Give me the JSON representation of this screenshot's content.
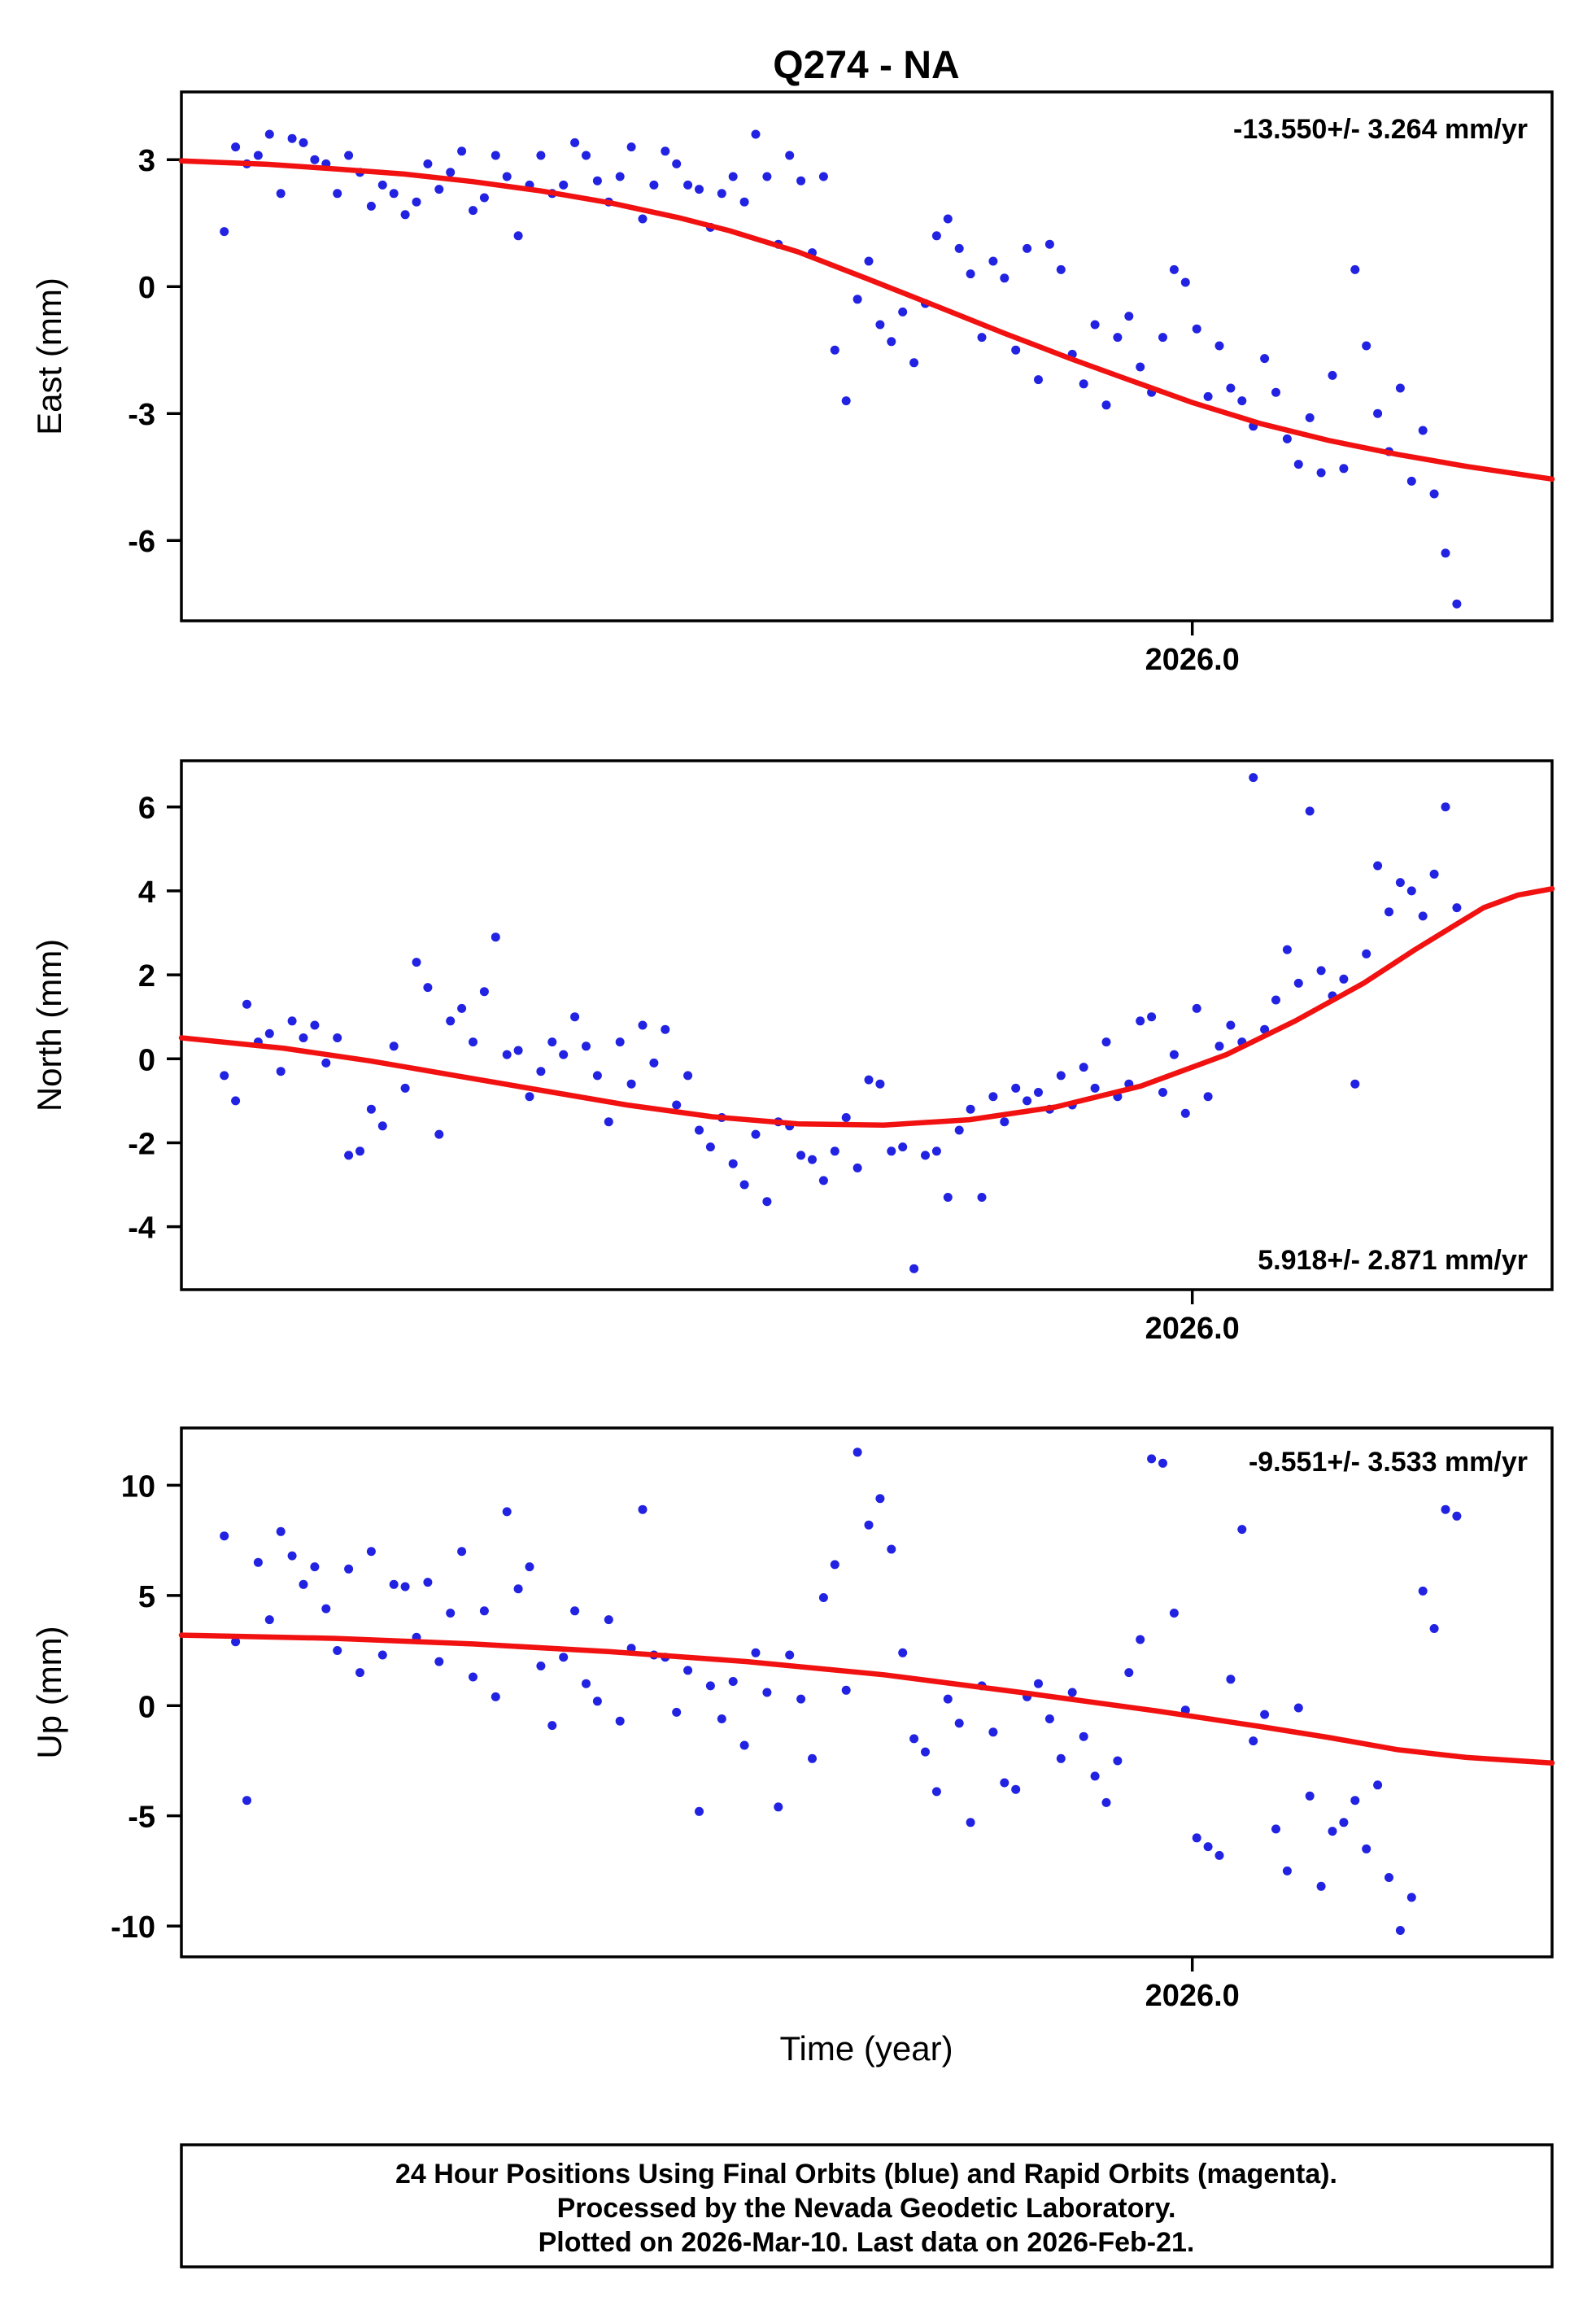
{
  "title": "Q274 - NA",
  "xlabel": "Time (year)",
  "footer": {
    "line1": "24 Hour Positions Using Final Orbits (blue) and Rapid Orbits (magenta).",
    "line2": "Processed by the Nevada Geodetic Laboratory.",
    "line3": "Plotted on 2026-Mar-10. Last data on 2026-Feb-21."
  },
  "colors": {
    "dot": "#2222e2",
    "trend": "#f11111",
    "frame": "#000000"
  },
  "chart_data": [
    {
      "type": "scatter",
      "name": "east",
      "ylabel": "East (mm)",
      "annotation": "-13.550+/- 3.264 mm/yr",
      "annotation_pos": "top-right",
      "xlim": [
        2025.41,
        2026.21
      ],
      "ylim": [
        -7.9,
        4.6
      ],
      "yticks": [
        3,
        0,
        -3,
        -6
      ],
      "xtick": {
        "value": 2026.0,
        "label": "2026.0"
      },
      "points": {
        "t0": 2025.435,
        "dt": 0.0066,
        "y": [
          1.3,
          3.3,
          2.9,
          3.1,
          3.6,
          2.2,
          3.5,
          3.4,
          3.0,
          2.9,
          2.2,
          3.1,
          2.7,
          1.9,
          2.4,
          2.2,
          1.7,
          2.0,
          2.9,
          2.3,
          2.7,
          3.2,
          1.8,
          2.1,
          3.1,
          2.6,
          1.2,
          2.4,
          3.1,
          2.2,
          2.4,
          3.4,
          3.1,
          2.5,
          2.0,
          2.6,
          3.3,
          1.6,
          2.4,
          3.2,
          2.9,
          2.4,
          2.3,
          1.4,
          2.2,
          2.6,
          2.0,
          3.6,
          2.6,
          1.0,
          3.1,
          2.5,
          0.8,
          2.6,
          -1.5,
          -2.7,
          -0.3,
          0.6,
          -0.9,
          -1.3,
          -0.6,
          -1.8,
          -0.4,
          1.2,
          1.6,
          0.9,
          0.3,
          -1.2,
          0.6,
          0.2,
          -1.5,
          0.9,
          -2.2,
          1.0,
          0.4,
          -1.6,
          -2.3,
          -0.9,
          -2.8,
          -1.2,
          -0.7,
          -1.9,
          -2.5,
          -1.2,
          0.4,
          0.1,
          -1.0,
          -2.6,
          -1.4,
          -2.4,
          -2.7,
          -3.3,
          -1.7,
          -2.5,
          -3.6,
          -4.2,
          -3.1,
          -4.4,
          -2.1,
          -4.3,
          0.4,
          -1.4,
          -3.0,
          -3.9,
          -2.4,
          -4.6,
          -3.4,
          -4.9,
          -6.3,
          -7.5
        ]
      },
      "trend": [
        [
          2025.41,
          2.97
        ],
        [
          2025.46,
          2.89
        ],
        [
          2025.5,
          2.78
        ],
        [
          2025.54,
          2.66
        ],
        [
          2025.58,
          2.48
        ],
        [
          2025.62,
          2.26
        ],
        [
          2025.66,
          1.98
        ],
        [
          2025.7,
          1.63
        ],
        [
          2025.73,
          1.32
        ],
        [
          2025.77,
          0.82
        ],
        [
          2025.81,
          0.19
        ],
        [
          2025.85,
          -0.45
        ],
        [
          2025.89,
          -1.1
        ],
        [
          2025.93,
          -1.72
        ],
        [
          2025.96,
          -2.16
        ],
        [
          2026.0,
          -2.74
        ],
        [
          2026.04,
          -3.24
        ],
        [
          2026.08,
          -3.64
        ],
        [
          2026.12,
          -3.97
        ],
        [
          2026.16,
          -4.25
        ],
        [
          2026.21,
          -4.55
        ]
      ]
    },
    {
      "type": "scatter",
      "name": "north",
      "ylabel": "North (mm)",
      "annotation": "5.918+/- 2.871 mm/yr",
      "annotation_pos": "bottom-right",
      "xlim": [
        2025.41,
        2026.21
      ],
      "ylim": [
        -5.5,
        7.1
      ],
      "yticks": [
        6,
        4,
        2,
        0,
        -2,
        -4
      ],
      "xtick": {
        "value": 2026.0,
        "label": "2026.0"
      },
      "points": {
        "t0": 2025.435,
        "dt": 0.0066,
        "y": [
          -0.4,
          -1.0,
          1.3,
          0.4,
          0.6,
          -0.3,
          0.9,
          0.5,
          0.8,
          -0.1,
          0.5,
          -2.3,
          -2.2,
          -1.2,
          -1.6,
          0.3,
          -0.7,
          2.3,
          1.7,
          -1.8,
          0.9,
          1.2,
          0.4,
          1.6,
          2.9,
          0.1,
          0.2,
          -0.9,
          -0.3,
          0.4,
          0.1,
          1.0,
          0.3,
          -0.4,
          -1.5,
          0.4,
          -0.6,
          0.8,
          -0.1,
          0.7,
          -1.1,
          -0.4,
          -1.7,
          -2.1,
          -1.4,
          -2.5,
          -3.0,
          -1.8,
          -3.4,
          -1.5,
          -1.6,
          -2.3,
          -2.4,
          -2.9,
          -2.2,
          -1.4,
          -2.6,
          -0.5,
          -0.6,
          -2.2,
          -2.1,
          -5.0,
          -2.3,
          -2.2,
          -3.3,
          -1.7,
          -1.2,
          -3.3,
          -0.9,
          -1.5,
          -0.7,
          -1.0,
          -0.8,
          -1.2,
          -0.4,
          -1.1,
          -0.2,
          -0.7,
          0.4,
          -0.9,
          -0.6,
          0.9,
          1.0,
          -0.8,
          0.1,
          -1.3,
          1.2,
          -0.9,
          0.3,
          0.8,
          0.4,
          6.7,
          0.7,
          1.4,
          2.6,
          1.8,
          5.9,
          2.1,
          1.5,
          1.9,
          -0.6,
          2.5,
          4.6,
          3.5,
          4.2,
          4.0,
          3.4,
          4.4,
          6.0,
          3.6
        ]
      },
      "trend": [
        [
          2025.41,
          0.5
        ],
        [
          2025.47,
          0.25
        ],
        [
          2025.52,
          -0.05
        ],
        [
          2025.57,
          -0.4
        ],
        [
          2025.62,
          -0.75
        ],
        [
          2025.67,
          -1.1
        ],
        [
          2025.72,
          -1.38
        ],
        [
          2025.77,
          -1.55
        ],
        [
          2025.82,
          -1.58
        ],
        [
          2025.87,
          -1.45
        ],
        [
          2025.92,
          -1.15
        ],
        [
          2025.97,
          -0.65
        ],
        [
          2026.02,
          0.1
        ],
        [
          2026.06,
          0.9
        ],
        [
          2026.1,
          1.8
        ],
        [
          2026.13,
          2.6
        ],
        [
          2026.15,
          3.1
        ],
        [
          2026.17,
          3.6
        ],
        [
          2026.19,
          3.9
        ],
        [
          2026.21,
          4.05
        ]
      ]
    },
    {
      "type": "scatter",
      "name": "up",
      "ylabel": "Up (mm)",
      "annotation": "-9.551+/- 3.533 mm/yr",
      "annotation_pos": "top-right",
      "xlim": [
        2025.41,
        2026.21
      ],
      "ylim": [
        -11.4,
        12.6
      ],
      "yticks": [
        10,
        5,
        0,
        -5,
        -10
      ],
      "xtick": {
        "value": 2026.0,
        "label": "2026.0"
      },
      "points": {
        "t0": 2025.435,
        "dt": 0.0066,
        "y": [
          7.7,
          2.9,
          -4.3,
          6.5,
          3.9,
          7.9,
          6.8,
          5.5,
          6.3,
          4.4,
          2.5,
          6.2,
          1.5,
          7.0,
          2.3,
          5.5,
          5.4,
          3.1,
          5.6,
          2.0,
          4.2,
          7.0,
          1.3,
          4.3,
          0.4,
          8.8,
          5.3,
          6.3,
          1.8,
          -0.9,
          2.2,
          4.3,
          1.0,
          0.2,
          3.9,
          -0.7,
          2.6,
          8.9,
          2.3,
          2.2,
          -0.3,
          1.6,
          -4.8,
          0.9,
          -0.6,
          1.1,
          -1.8,
          2.4,
          0.6,
          -4.6,
          2.3,
          0.3,
          -2.4,
          4.9,
          6.4,
          0.7,
          11.5,
          8.2,
          9.4,
          7.1,
          2.4,
          -1.5,
          -2.1,
          -3.9,
          0.3,
          -0.8,
          -5.3,
          0.9,
          -1.2,
          -3.5,
          -3.8,
          0.4,
          1.0,
          -0.6,
          -2.4,
          0.6,
          -1.4,
          -3.2,
          -4.4,
          -2.5,
          1.5,
          3.0,
          11.2,
          11.0,
          4.2,
          -0.2,
          -6.0,
          -6.4,
          -6.8,
          1.2,
          8.0,
          -1.6,
          -0.4,
          -5.6,
          -7.5,
          -0.1,
          -4.1,
          -8.2,
          -5.7,
          -5.3,
          -4.3,
          -6.5,
          -3.6,
          -7.8,
          -10.2,
          -8.7,
          5.2,
          3.5,
          8.9,
          8.6
        ]
      },
      "trend": [
        [
          2025.41,
          3.2
        ],
        [
          2025.5,
          3.05
        ],
        [
          2025.58,
          2.8
        ],
        [
          2025.66,
          2.45
        ],
        [
          2025.74,
          2.0
        ],
        [
          2025.82,
          1.4
        ],
        [
          2025.9,
          0.6
        ],
        [
          2025.98,
          -0.25
        ],
        [
          2026.04,
          -0.95
        ],
        [
          2026.08,
          -1.45
        ],
        [
          2026.12,
          -2.0
        ],
        [
          2026.16,
          -2.35
        ],
        [
          2026.21,
          -2.6
        ]
      ]
    }
  ]
}
